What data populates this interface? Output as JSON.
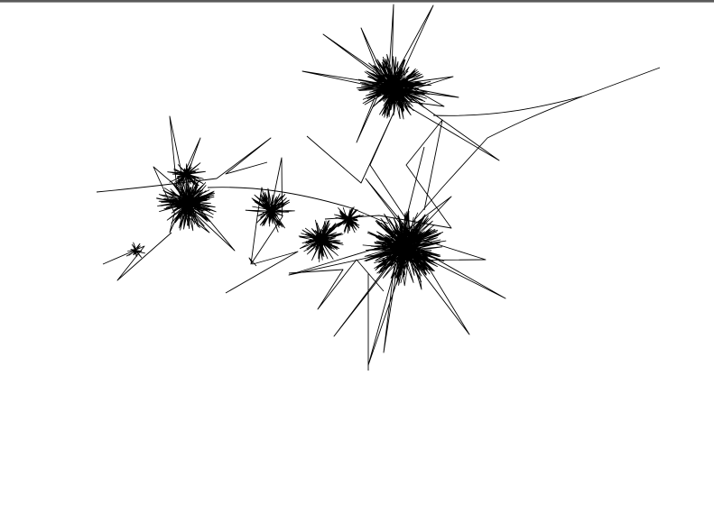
{
  "canvas": {
    "background_color": "#ffffff",
    "stroke_color": "#000000",
    "frame_color": "#5a5a5a"
  }
}
